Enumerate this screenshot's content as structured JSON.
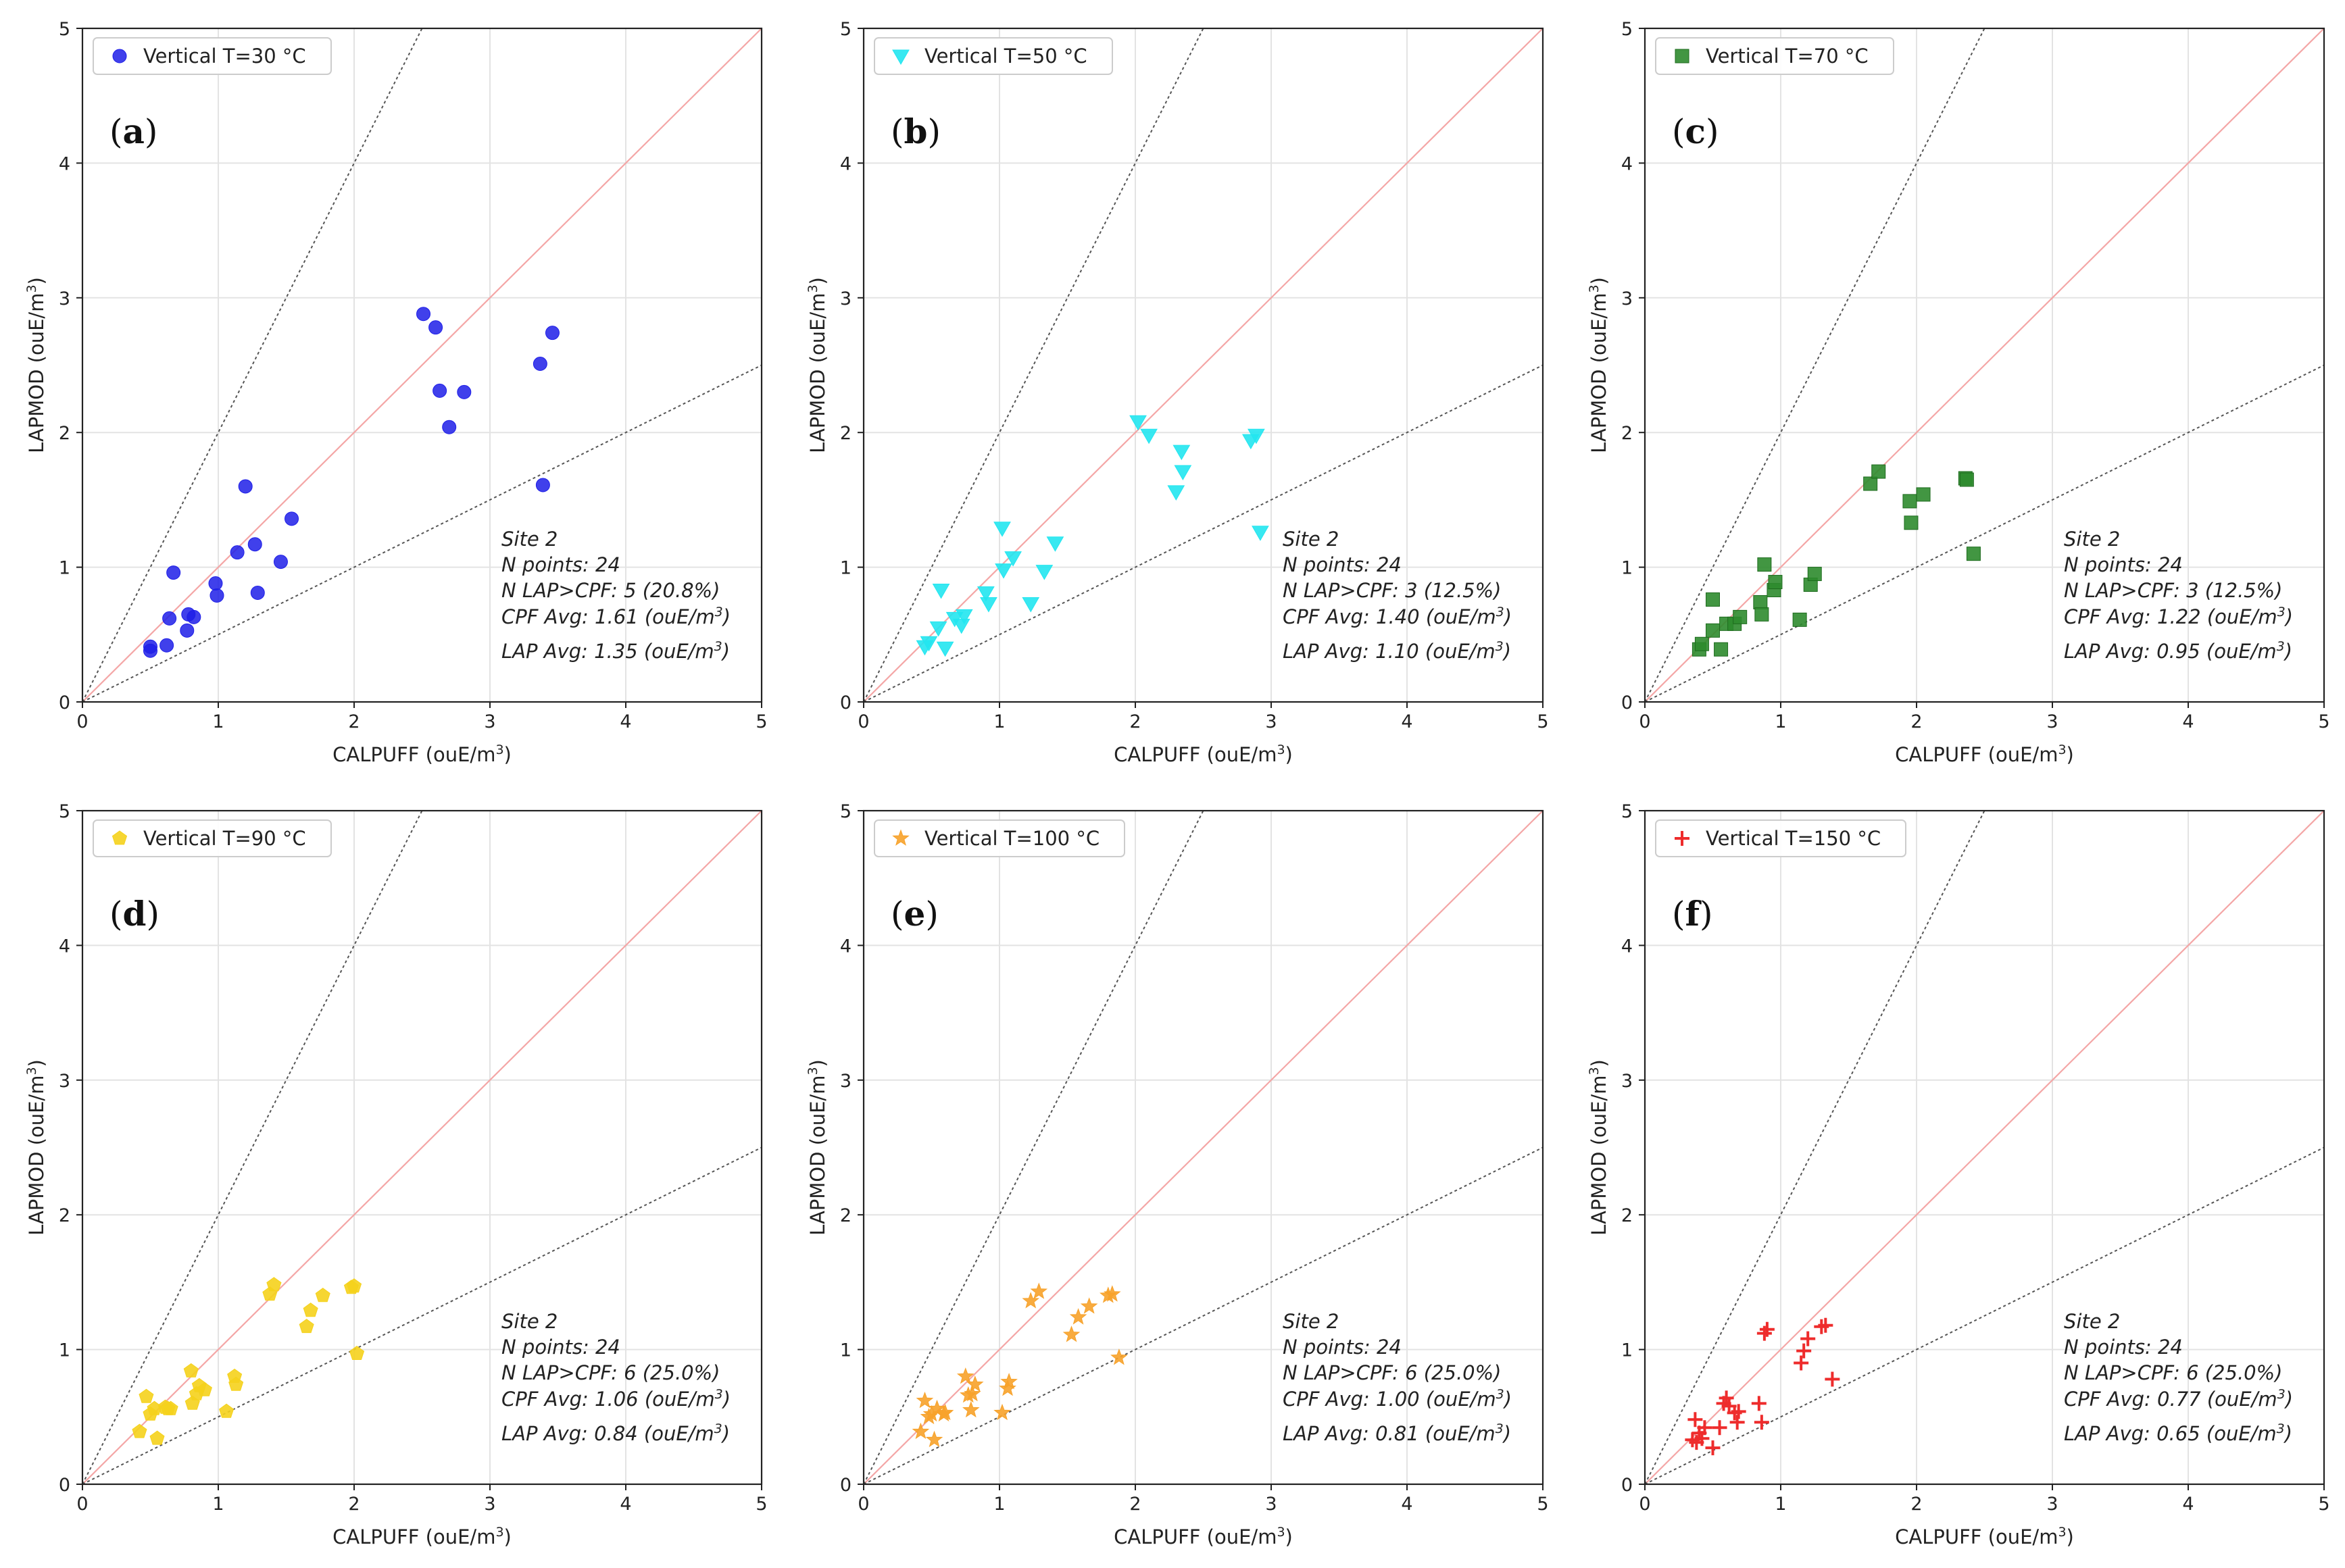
{
  "chart_data": [
    {
      "type": "scatter",
      "panel_label": "a",
      "series_name": "Vertical T=30 °C",
      "marker": "circle",
      "color": "#1f1fe8",
      "xlabel": "CALPUFF (ouE/m",
      "ylabel": "LAPMOD (ouE/m",
      "label_exponent": "3",
      "label_close": ")",
      "xlim": [
        0,
        5
      ],
      "ylim": [
        0,
        5
      ],
      "xticks": [
        "0",
        "1",
        "2",
        "3",
        "4",
        "5"
      ],
      "yticks": [
        "0",
        "1",
        "2",
        "3",
        "4",
        "5"
      ],
      "reference_lines": [
        {
          "slope": 1,
          "color": "#f4a6a6"
        },
        {
          "slope": 2,
          "color": "#555555"
        },
        {
          "slope": 0.5,
          "color": "#555555"
        }
      ],
      "stats": {
        "site": "Site 2",
        "n_points": "N points: 24",
        "n_lap_cpf": "N LAP>CPF: 5 (20.8%)",
        "cpf_avg": "CPF Avg: 1.61 (ouE/m",
        "lap_avg": "LAP Avg: 1.35 (ouE/m"
      },
      "x": [
        0.5,
        0.5,
        0.62,
        0.64,
        0.67,
        0.77,
        0.78,
        0.82,
        0.98,
        0.99,
        1.14,
        1.2,
        1.27,
        1.29,
        1.46,
        1.54,
        2.51,
        2.6,
        2.63,
        2.7,
        2.81,
        3.37,
        3.39,
        3.46
      ],
      "y": [
        0.38,
        0.41,
        0.42,
        0.62,
        0.96,
        0.53,
        0.65,
        0.63,
        0.88,
        0.79,
        1.11,
        1.6,
        1.17,
        0.81,
        1.04,
        1.36,
        2.88,
        2.78,
        2.31,
        2.04,
        2.3,
        2.51,
        1.61,
        2.74
      ]
    },
    {
      "type": "scatter",
      "panel_label": "b",
      "series_name": "Vertical T=50 °C",
      "marker": "triangle-down",
      "color": "#22e6f0",
      "xlabel": "CALPUFF (ouE/m",
      "ylabel": "LAPMOD (ouE/m",
      "label_exponent": "3",
      "label_close": ")",
      "xlim": [
        0,
        5
      ],
      "ylim": [
        0,
        5
      ],
      "xticks": [
        "0",
        "1",
        "2",
        "3",
        "4",
        "5"
      ],
      "yticks": [
        "0",
        "1",
        "2",
        "3",
        "4",
        "5"
      ],
      "reference_lines": [
        {
          "slope": 1,
          "color": "#f4a6a6"
        },
        {
          "slope": 2,
          "color": "#555555"
        },
        {
          "slope": 0.5,
          "color": "#555555"
        }
      ],
      "stats": {
        "site": "Site 2",
        "n_points": "N points: 24",
        "n_lap_cpf": "N LAP>CPF: 3 (12.5%)",
        "cpf_avg": "CPF Avg: 1.40 (ouE/m",
        "lap_avg": "LAP Avg: 1.10 (ouE/m"
      },
      "x": [
        0.45,
        0.48,
        0.55,
        0.57,
        0.6,
        0.67,
        0.72,
        0.74,
        0.9,
        0.92,
        1.02,
        1.03,
        1.1,
        1.23,
        1.33,
        1.41,
        2.02,
        2.1,
        2.3,
        2.34,
        2.35,
        2.85,
        2.89,
        2.92
      ],
      "y": [
        0.41,
        0.44,
        0.55,
        0.83,
        0.4,
        0.62,
        0.57,
        0.64,
        0.81,
        0.73,
        1.29,
        0.98,
        1.07,
        0.73,
        0.97,
        1.18,
        2.08,
        1.98,
        1.56,
        1.86,
        1.71,
        1.94,
        1.98,
        1.26
      ]
    },
    {
      "type": "scatter",
      "panel_label": "c",
      "series_name": "Vertical T=70 °C",
      "marker": "square",
      "color": "#2e8b2e",
      "xlabel": "CALPUFF (ouE/m",
      "ylabel": "LAPMOD (ouE/m",
      "label_exponent": "3",
      "label_close": ")",
      "xlim": [
        0,
        5
      ],
      "ylim": [
        0,
        5
      ],
      "xticks": [
        "0",
        "1",
        "2",
        "3",
        "4",
        "5"
      ],
      "yticks": [
        "0",
        "1",
        "2",
        "3",
        "4",
        "5"
      ],
      "reference_lines": [
        {
          "slope": 1,
          "color": "#f4a6a6"
        },
        {
          "slope": 2,
          "color": "#555555"
        },
        {
          "slope": 0.5,
          "color": "#555555"
        }
      ],
      "stats": {
        "site": "Site 2",
        "n_points": "N points: 24",
        "n_lap_cpf": "N LAP>CPF: 3 (12.5%)",
        "cpf_avg": "CPF Avg: 1.22 (ouE/m",
        "lap_avg": "LAP Avg: 0.95 (ouE/m"
      },
      "x": [
        0.4,
        0.42,
        0.5,
        0.5,
        0.56,
        0.6,
        0.66,
        0.7,
        0.85,
        0.86,
        0.88,
        0.95,
        0.96,
        1.14,
        1.22,
        1.25,
        1.66,
        1.72,
        1.95,
        1.96,
        2.05,
        2.36,
        2.37,
        2.42
      ],
      "y": [
        0.39,
        0.43,
        0.76,
        0.53,
        0.39,
        0.58,
        0.58,
        0.63,
        0.74,
        0.65,
        1.02,
        0.83,
        0.89,
        0.61,
        0.87,
        0.95,
        1.62,
        1.71,
        1.49,
        1.33,
        1.54,
        1.66,
        1.65,
        1.1
      ]
    },
    {
      "type": "scatter",
      "panel_label": "d",
      "series_name": "Vertical T=90 °C",
      "marker": "pentagon",
      "color": "#f5d21c",
      "xlabel": "CALPUFF (ouE/m",
      "ylabel": "LAPMOD (ouE/m",
      "label_exponent": "3",
      "label_close": ")",
      "xlim": [
        0,
        5
      ],
      "ylim": [
        0,
        5
      ],
      "xticks": [
        "0",
        "1",
        "2",
        "3",
        "4",
        "5"
      ],
      "yticks": [
        "0",
        "1",
        "2",
        "3",
        "4",
        "5"
      ],
      "reference_lines": [
        {
          "slope": 1,
          "color": "#f4a6a6"
        },
        {
          "slope": 2,
          "color": "#555555"
        },
        {
          "slope": 0.5,
          "color": "#555555"
        }
      ],
      "stats": {
        "site": "Site 2",
        "n_points": "N points: 24",
        "n_lap_cpf": "N LAP>CPF: 6 (25.0%)",
        "cpf_avg": "CPF Avg: 1.06 (ouE/m",
        "lap_avg": "LAP Avg: 0.84 (ouE/m"
      },
      "x": [
        0.42,
        0.47,
        0.5,
        0.53,
        0.55,
        0.63,
        0.8,
        0.81,
        0.84,
        0.86,
        0.9,
        1.06,
        1.12,
        1.13,
        1.38,
        1.41,
        1.65,
        1.68,
        1.77,
        1.98,
        2.0,
        2.02,
        0.65,
        0.61
      ],
      "y": [
        0.39,
        0.65,
        0.52,
        0.56,
        0.34,
        0.56,
        0.84,
        0.6,
        0.67,
        0.73,
        0.7,
        0.54,
        0.8,
        0.74,
        1.41,
        1.48,
        1.17,
        1.29,
        1.4,
        1.46,
        1.47,
        0.97,
        0.56,
        0.57
      ]
    },
    {
      "type": "scatter",
      "panel_label": "e",
      "series_name": "Vertical T=100 °C",
      "marker": "star",
      "color": "#f7a22a",
      "xlabel": "CALPUFF (ouE/m",
      "ylabel": "LAPMOD (ouE/m",
      "label_exponent": "3",
      "label_close": ")",
      "xlim": [
        0,
        5
      ],
      "ylim": [
        0,
        5
      ],
      "xticks": [
        "0",
        "1",
        "2",
        "3",
        "4",
        "5"
      ],
      "yticks": [
        "0",
        "1",
        "2",
        "3",
        "4",
        "5"
      ],
      "reference_lines": [
        {
          "slope": 1,
          "color": "#f4a6a6"
        },
        {
          "slope": 2,
          "color": "#555555"
        },
        {
          "slope": 0.5,
          "color": "#555555"
        }
      ],
      "stats": {
        "site": "Site 2",
        "n_points": "N points: 24",
        "n_lap_cpf": "N LAP>CPF: 6 (25.0%)",
        "cpf_avg": "CPF Avg: 1.00 (ouE/m",
        "lap_avg": "LAP Avg: 0.81 (ouE/m"
      },
      "x": [
        0.42,
        0.45,
        0.5,
        0.52,
        0.6,
        0.75,
        0.79,
        0.8,
        0.82,
        1.02,
        1.06,
        1.07,
        1.23,
        1.29,
        1.53,
        1.58,
        1.66,
        1.8,
        1.83,
        1.88,
        0.54,
        0.48,
        0.77,
        0.59
      ],
      "y": [
        0.39,
        0.62,
        0.52,
        0.33,
        0.53,
        0.8,
        0.55,
        0.67,
        0.74,
        0.53,
        0.71,
        0.76,
        1.36,
        1.43,
        1.11,
        1.24,
        1.32,
        1.4,
        1.41,
        0.94,
        0.56,
        0.5,
        0.66,
        0.52
      ]
    },
    {
      "type": "scatter",
      "panel_label": "f",
      "series_name": "Vertical T=150 °C",
      "marker": "plus",
      "color": "#ee2c2c",
      "xlabel": "CALPUFF (ouE/m",
      "ylabel": "LAPMOD (ouE/m",
      "label_exponent": "3",
      "label_close": ")",
      "xlim": [
        0,
        5
      ],
      "ylim": [
        0,
        5
      ],
      "xticks": [
        "0",
        "1",
        "2",
        "3",
        "4",
        "5"
      ],
      "yticks": [
        "0",
        "1",
        "2",
        "3",
        "4",
        "5"
      ],
      "reference_lines": [
        {
          "slope": 1,
          "color": "#f4a6a6"
        },
        {
          "slope": 2,
          "color": "#555555"
        },
        {
          "slope": 0.5,
          "color": "#555555"
        }
      ],
      "stats": {
        "site": "Site 2",
        "n_points": "N points: 24",
        "n_lap_cpf": "N LAP>CPF: 6 (25.0%)",
        "cpf_avg": "CPF Avg: 0.77 (ouE/m",
        "lap_avg": "LAP Avg: 0.65 (ouE/m"
      },
      "x": [
        0.37,
        0.38,
        0.4,
        0.42,
        0.5,
        0.55,
        0.58,
        0.6,
        0.66,
        0.68,
        0.84,
        0.86,
        0.88,
        0.9,
        1.15,
        1.17,
        1.2,
        1.3,
        1.33,
        1.38,
        0.35,
        0.44,
        0.69,
        0.62
      ],
      "y": [
        0.48,
        0.31,
        0.38,
        0.34,
        0.27,
        0.42,
        0.6,
        0.64,
        0.53,
        0.46,
        0.6,
        0.46,
        1.12,
        1.15,
        0.9,
        0.99,
        1.08,
        1.17,
        1.18,
        0.78,
        0.33,
        0.42,
        0.54,
        0.58
      ]
    }
  ]
}
